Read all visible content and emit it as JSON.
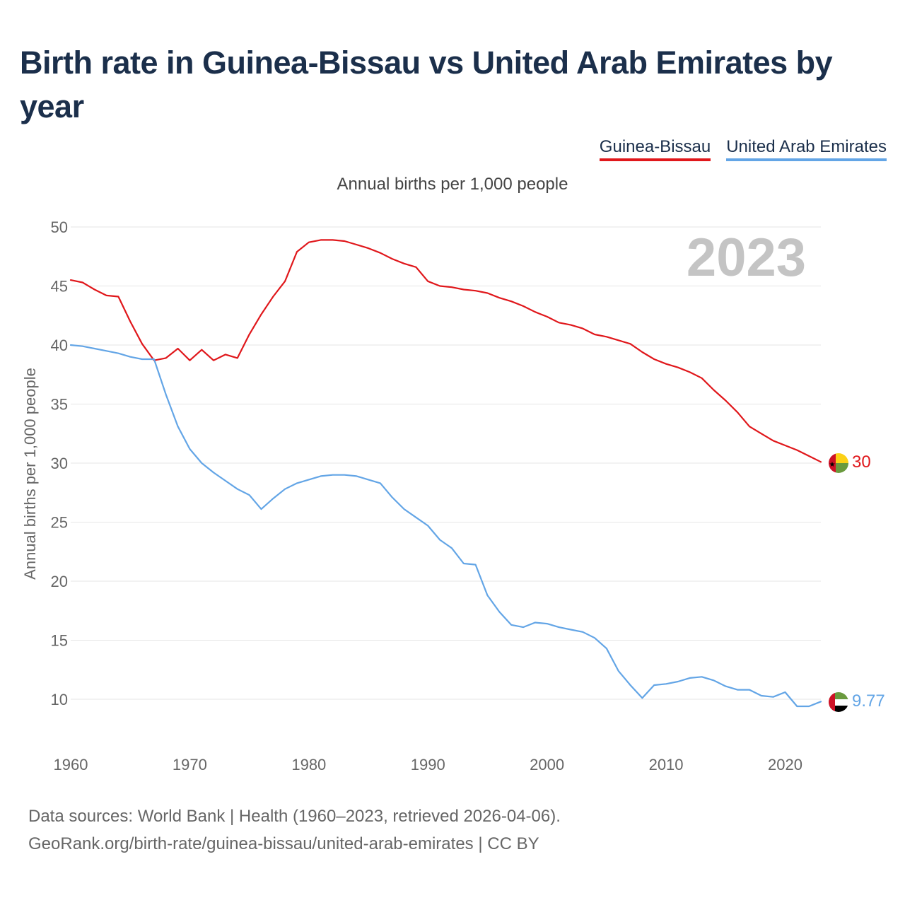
{
  "title": "Birth rate in Guinea-Bissau vs United Arab Emirates by year",
  "legend": {
    "series1": "Guinea-Bissau",
    "series2": "United Arab Emirates"
  },
  "subtitle": "Annual births per 1,000 people",
  "year_watermark": "2023",
  "footer": {
    "line1": "Data sources: World Bank | Health (1960–2023, retrieved 2026-04-06).",
    "line2": "GeoRank.org/birth-rate/guinea-bissau/united-arab-emirates | CC BY"
  },
  "colors": {
    "series1": "#e0171b",
    "series2": "#63a5e6",
    "grid": "#e6e6e6",
    "axis_text": "#666666",
    "watermark": "#c4c4c4"
  },
  "chart_data": {
    "type": "line",
    "title": "Birth rate in Guinea-Bissau vs United Arab Emirates by year",
    "xlabel": "",
    "ylabel": "Annual births per 1,000 people",
    "xlim": [
      1960,
      2023
    ],
    "ylim": [
      6,
      52
    ],
    "x_ticks": [
      1960,
      1970,
      1980,
      1990,
      2000,
      2010,
      2020
    ],
    "y_ticks": [
      10,
      15,
      20,
      25,
      30,
      35,
      40,
      45,
      50
    ],
    "x": [
      1960,
      1961,
      1962,
      1963,
      1964,
      1965,
      1966,
      1967,
      1968,
      1969,
      1970,
      1971,
      1972,
      1973,
      1974,
      1975,
      1976,
      1977,
      1978,
      1979,
      1980,
      1981,
      1982,
      1983,
      1984,
      1985,
      1986,
      1987,
      1988,
      1989,
      1990,
      1991,
      1992,
      1993,
      1994,
      1995,
      1996,
      1997,
      1998,
      1999,
      2000,
      2001,
      2002,
      2003,
      2004,
      2005,
      2006,
      2007,
      2008,
      2009,
      2010,
      2011,
      2012,
      2013,
      2014,
      2015,
      2016,
      2017,
      2018,
      2019,
      2020,
      2021,
      2022,
      2023
    ],
    "series": [
      {
        "name": "Guinea-Bissau",
        "end_label": "30",
        "flag": "guinea-bissau-flag",
        "values": [
          45.5,
          45.3,
          44.7,
          44.2,
          44.1,
          42.0,
          40.1,
          38.7,
          38.9,
          39.7,
          38.7,
          39.6,
          38.7,
          39.2,
          38.9,
          40.9,
          42.6,
          44.1,
          45.4,
          47.9,
          48.7,
          48.9,
          48.9,
          48.8,
          48.5,
          48.2,
          47.8,
          47.3,
          46.9,
          46.6,
          45.4,
          45.0,
          44.9,
          44.7,
          44.6,
          44.4,
          44.0,
          43.7,
          43.3,
          42.8,
          42.4,
          41.9,
          41.7,
          41.4,
          40.9,
          40.7,
          40.4,
          40.1,
          39.4,
          38.8,
          38.4,
          38.1,
          37.7,
          37.2,
          36.2,
          35.3,
          34.3,
          33.1,
          32.5,
          31.9,
          31.5,
          31.1,
          30.6,
          30.1
        ]
      },
      {
        "name": "United Arab Emirates",
        "end_label": "9.77",
        "flag": "uae-flag",
        "values": [
          40.0,
          39.9,
          39.7,
          39.5,
          39.3,
          39.0,
          38.8,
          38.8,
          35.8,
          33.1,
          31.2,
          30.0,
          29.2,
          28.5,
          27.8,
          27.3,
          26.1,
          27.0,
          27.8,
          28.3,
          28.6,
          28.9,
          29.0,
          29.0,
          28.9,
          28.6,
          28.3,
          27.1,
          26.1,
          25.4,
          24.7,
          23.5,
          22.8,
          21.5,
          21.4,
          18.8,
          17.4,
          16.3,
          16.1,
          16.5,
          16.4,
          16.1,
          15.9,
          15.7,
          15.2,
          14.3,
          12.4,
          11.2,
          10.1,
          11.2,
          11.3,
          11.5,
          11.8,
          11.9,
          11.6,
          11.1,
          10.8,
          10.8,
          10.3,
          10.2,
          10.6,
          9.4,
          9.4,
          9.8
        ]
      }
    ]
  }
}
